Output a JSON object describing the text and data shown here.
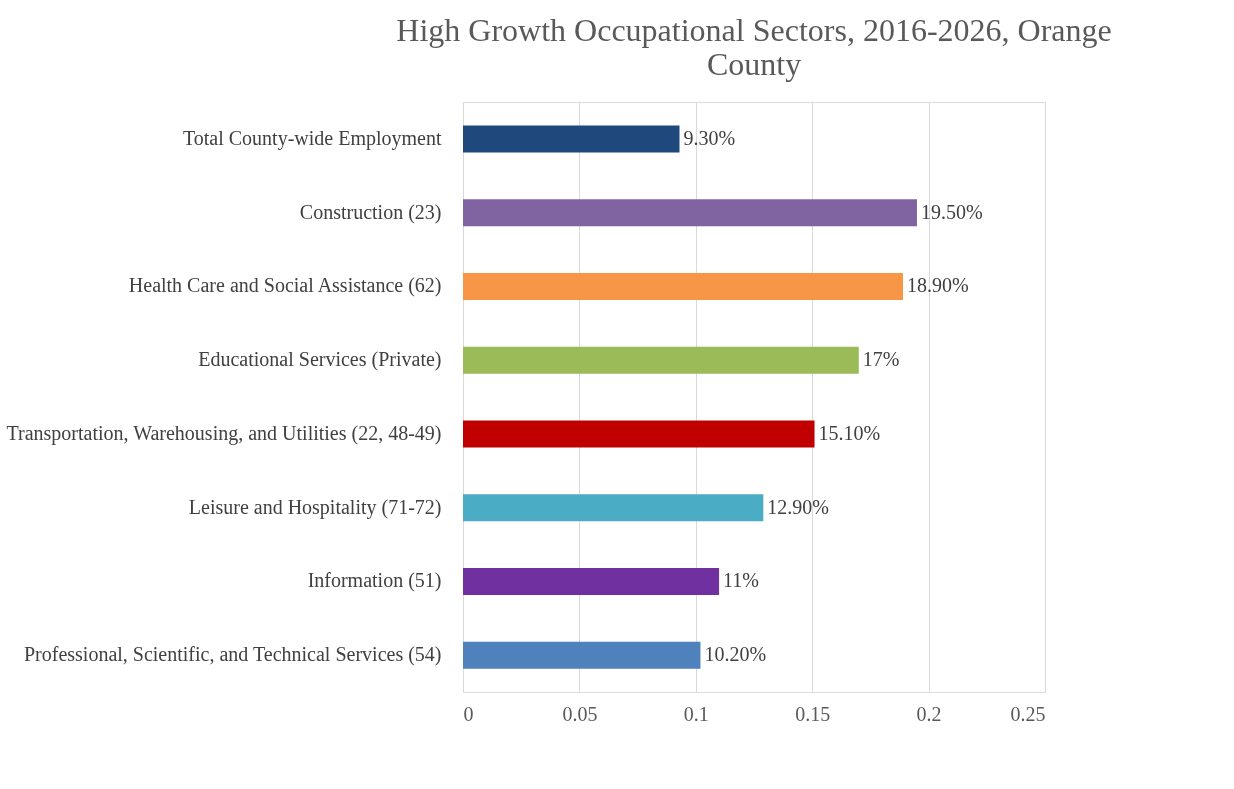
{
  "chart_data": {
    "type": "bar",
    "orientation": "horizontal",
    "title": "High Growth Occupational Sectors, 2016-2026, Orange County",
    "categories": [
      "Total County-wide Employment",
      "Construction (23)",
      "Health Care and Social Assistance (62)",
      "Educational Services (Private)",
      "Transportation, Warehousing, and Utilities (22, 48-49)",
      "Leisure and Hospitality (71-72)",
      "Information (51)",
      "Professional, Scientific, and Technical Services (54)"
    ],
    "values": [
      0.093,
      0.195,
      0.189,
      0.17,
      0.151,
      0.129,
      0.11,
      0.102
    ],
    "value_labels": [
      "9.30%",
      "19.50%",
      "18.90%",
      "17%",
      "15.10%",
      "12.90%",
      "11%",
      "10.20%"
    ],
    "colors": [
      "#1f497d",
      "#8064a2",
      "#f79646",
      "#9bbb59",
      "#c00000",
      "#4bacc6",
      "#7030a0",
      "#4f81bd"
    ],
    "xlim": [
      0,
      0.25
    ],
    "xticks": [
      0,
      0.05,
      0.1,
      0.15,
      0.2,
      0.25
    ],
    "grid": "x"
  }
}
